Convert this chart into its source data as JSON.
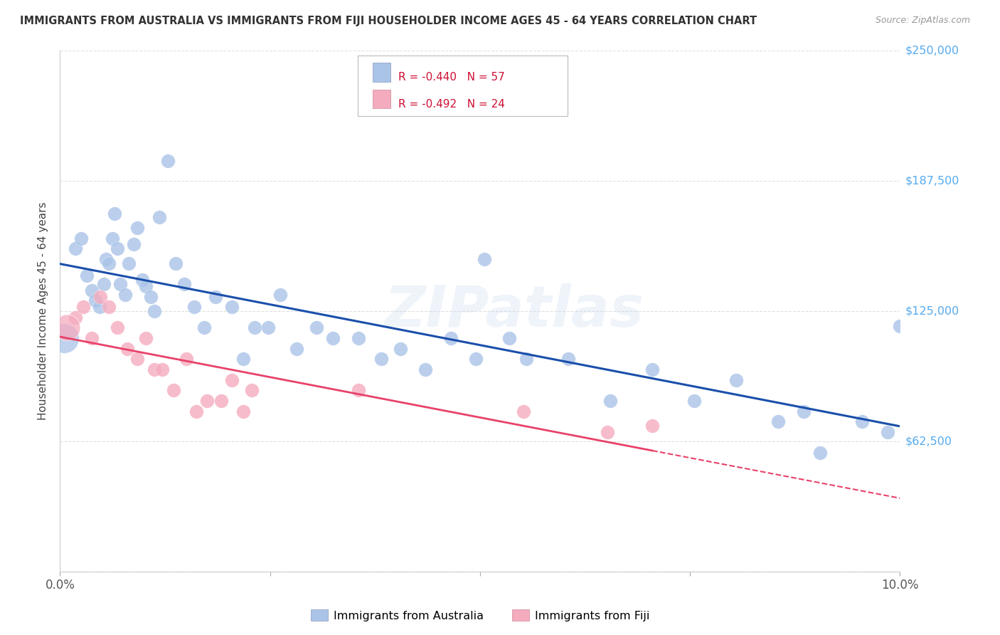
{
  "title": "IMMIGRANTS FROM AUSTRALIA VS IMMIGRANTS FROM FIJI HOUSEHOLDER INCOME AGES 45 - 64 YEARS CORRELATION CHART",
  "source": "Source: ZipAtlas.com",
  "ylabel": "Householder Income Ages 45 - 64 years",
  "xmin": 0.0,
  "xmax": 10.0,
  "ymin": 0,
  "ymax": 250000,
  "yticks": [
    0,
    62500,
    125000,
    187500,
    250000
  ],
  "ytick_labels": [
    "",
    "$62,500",
    "$125,000",
    "$187,500",
    "$250,000"
  ],
  "xtick_show": [
    "0.0%",
    "10.0%"
  ],
  "australia_color": "#aac4e8",
  "fiji_color": "#f5abbe",
  "australia_line_color": "#1a4faa",
  "fiji_line_color": "#e8426a",
  "australia_R": -0.44,
  "australia_N": 57,
  "fiji_R": -0.492,
  "fiji_N": 24,
  "watermark": "ZIPatlas",
  "australia_scatter_x": [
    0.05,
    0.18,
    0.25,
    0.32,
    0.38,
    0.42,
    0.47,
    0.52,
    0.55,
    0.58,
    0.62,
    0.65,
    0.68,
    0.72,
    0.78,
    0.82,
    0.88,
    0.92,
    0.98,
    1.02,
    1.08,
    1.12,
    1.18,
    1.28,
    1.38,
    1.48,
    1.6,
    1.72,
    1.85,
    2.05,
    2.18,
    2.32,
    2.48,
    2.62,
    2.82,
    3.05,
    3.25,
    3.55,
    3.82,
    4.05,
    4.35,
    4.65,
    4.95,
    5.05,
    5.35,
    5.55,
    6.05,
    6.55,
    7.05,
    7.55,
    8.05,
    8.55,
    8.85,
    9.05,
    9.55,
    9.85,
    10.0
  ],
  "australia_scatter_y": [
    112000,
    155000,
    160000,
    142000,
    135000,
    130000,
    127000,
    138000,
    150000,
    148000,
    160000,
    172000,
    155000,
    138000,
    133000,
    148000,
    157000,
    165000,
    140000,
    137000,
    132000,
    125000,
    170000,
    197000,
    148000,
    138000,
    127000,
    117000,
    132000,
    127000,
    102000,
    117000,
    117000,
    133000,
    107000,
    117000,
    112000,
    112000,
    102000,
    107000,
    97000,
    112000,
    102000,
    150000,
    112000,
    102000,
    102000,
    82000,
    97000,
    82000,
    92000,
    72000,
    77000,
    57000,
    72000,
    67000,
    118000
  ],
  "australia_big_dot_x": 0.05,
  "australia_big_dot_y": 112000,
  "australia_big_dot_size": 900,
  "fiji_scatter_x": [
    0.08,
    0.18,
    0.28,
    0.38,
    0.48,
    0.58,
    0.68,
    0.8,
    0.92,
    1.02,
    1.12,
    1.22,
    1.35,
    1.5,
    1.62,
    1.75,
    1.92,
    2.05,
    2.18,
    2.28,
    3.55,
    5.52,
    6.52,
    7.05
  ],
  "fiji_scatter_y": [
    117000,
    122000,
    127000,
    112000,
    132000,
    127000,
    117000,
    107000,
    102000,
    112000,
    97000,
    97000,
    87000,
    102000,
    77000,
    82000,
    82000,
    92000,
    77000,
    87000,
    87000,
    77000,
    67000,
    70000
  ],
  "fiji_big_dot_x": 0.08,
  "fiji_big_dot_y": 117000,
  "fiji_big_dot_size": 700,
  "background_color": "#ffffff",
  "grid_color": "#dddddd",
  "title_color": "#333333",
  "right_label_color": "#55aaee"
}
